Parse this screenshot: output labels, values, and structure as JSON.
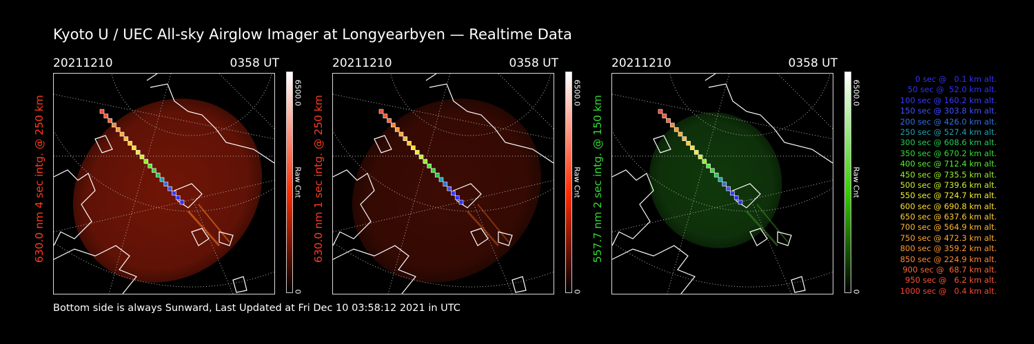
{
  "title": "Kyoto U / UEC All-sky Airglow Imager at Longyearbyen — Realtime Data",
  "footer": "Bottom side is always Sunward, Last Updated at Fri Dec 10 03:58:12 2021 in UTC",
  "panels": [
    {
      "date": "20211210",
      "time": "0358 UT",
      "ylabel": "630.0 nm 4 sec intg. @ 250 km",
      "label_color": "#ff3b1f",
      "cbar_max": "6500.0",
      "cbar_unit": "Raw Cnt",
      "cbar_min": "0",
      "cbar_color": "#ff2a00",
      "emission_level": 0.75
    },
    {
      "date": "20211210",
      "time": "0358 UT",
      "ylabel": "630.0 nm 1 sec intg. @ 250 km",
      "label_color": "#ff3b1f",
      "cbar_max": "6500.0",
      "cbar_unit": "Raw Cnt",
      "cbar_min": "0",
      "cbar_color": "#ff2a00",
      "emission_level": 0.25
    },
    {
      "date": "20211210",
      "time": "0358 UT",
      "ylabel": "557.7 nm 2 sec intg. @ 150 km",
      "label_color": "#33dd33",
      "cbar_max": "6500.0",
      "cbar_unit": "Raw Cnt",
      "cbar_min": "0",
      "cbar_color": "#33cc00",
      "emission_level": 0.5
    }
  ],
  "legend": [
    {
      "text": "0 sec @   0.1 km alt.",
      "color": "#3030ff"
    },
    {
      "text": "50 sec @  52.0 km alt.",
      "color": "#3030ff"
    },
    {
      "text": "100 sec @ 160.2 km alt.",
      "color": "#3a3aff"
    },
    {
      "text": "150 sec @ 303.8 km alt.",
      "color": "#4050ff"
    },
    {
      "text": "200 sec @ 426.0 km alt.",
      "color": "#3070e0"
    },
    {
      "text": "250 sec @ 527.4 km alt.",
      "color": "#20a0b0"
    },
    {
      "text": "300 sec @ 608.6 km alt.",
      "color": "#22cc55"
    },
    {
      "text": "350 sec @ 670.2 km alt.",
      "color": "#33dd33"
    },
    {
      "text": "400 sec @ 712.4 km alt.",
      "color": "#55ee33"
    },
    {
      "text": "450 sec @ 735.5 km alt.",
      "color": "#99ee33"
    },
    {
      "text": "500 sec @ 739.6 km alt.",
      "color": "#ccee33"
    },
    {
      "text": "550 sec @ 724.7 km alt.",
      "color": "#eeee33"
    },
    {
      "text": "600 sec @ 690.8 km alt.",
      "color": "#ffdd33"
    },
    {
      "text": "650 sec @ 637.6 km alt.",
      "color": "#ffcc33"
    },
    {
      "text": "700 sec @ 564.9 km alt.",
      "color": "#ffbb33"
    },
    {
      "text": "750 sec @ 472.3 km alt.",
      "color": "#ffaa33"
    },
    {
      "text": "800 sec @ 359.2 km alt.",
      "color": "#ff9933"
    },
    {
      "text": "850 sec @ 224.9 km alt.",
      "color": "#ff8833"
    },
    {
      "text": "900 sec @  68.7 km alt.",
      "color": "#ff6633"
    },
    {
      "text": "950 sec @   6.2 km alt.",
      "color": "#ff5533"
    },
    {
      "text": "1000 sec @   0.4 km alt.",
      "color": "#ff4433"
    }
  ]
}
